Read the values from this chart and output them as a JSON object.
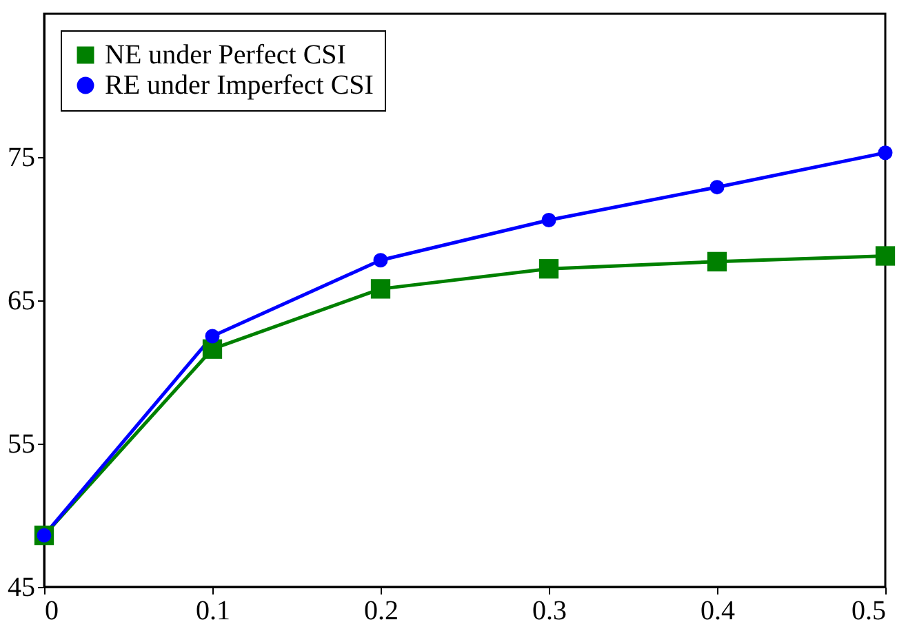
{
  "chart_data": {
    "type": "line",
    "x": [
      0,
      0.1,
      0.2,
      0.3,
      0.4,
      0.5
    ],
    "series": [
      {
        "name": "NE under Perfect CSI",
        "color": "#008000",
        "marker": "square",
        "values": [
          48.6,
          61.6,
          65.8,
          67.2,
          67.7,
          68.1
        ]
      },
      {
        "name": "RE under Imperfect CSI",
        "color": "#0000ff",
        "marker": "circle",
        "values": [
          48.6,
          62.5,
          67.8,
          70.6,
          72.9,
          75.3
        ]
      }
    ],
    "xlim": [
      0,
      0.5
    ],
    "xticks": [
      0,
      0.1,
      0.2,
      0.3,
      0.4,
      0.5
    ],
    "ylim": [
      45,
      85
    ],
    "yticks": [
      45,
      55,
      65,
      75
    ],
    "grid": false,
    "legend": "top left",
    "line_style": "solid"
  }
}
